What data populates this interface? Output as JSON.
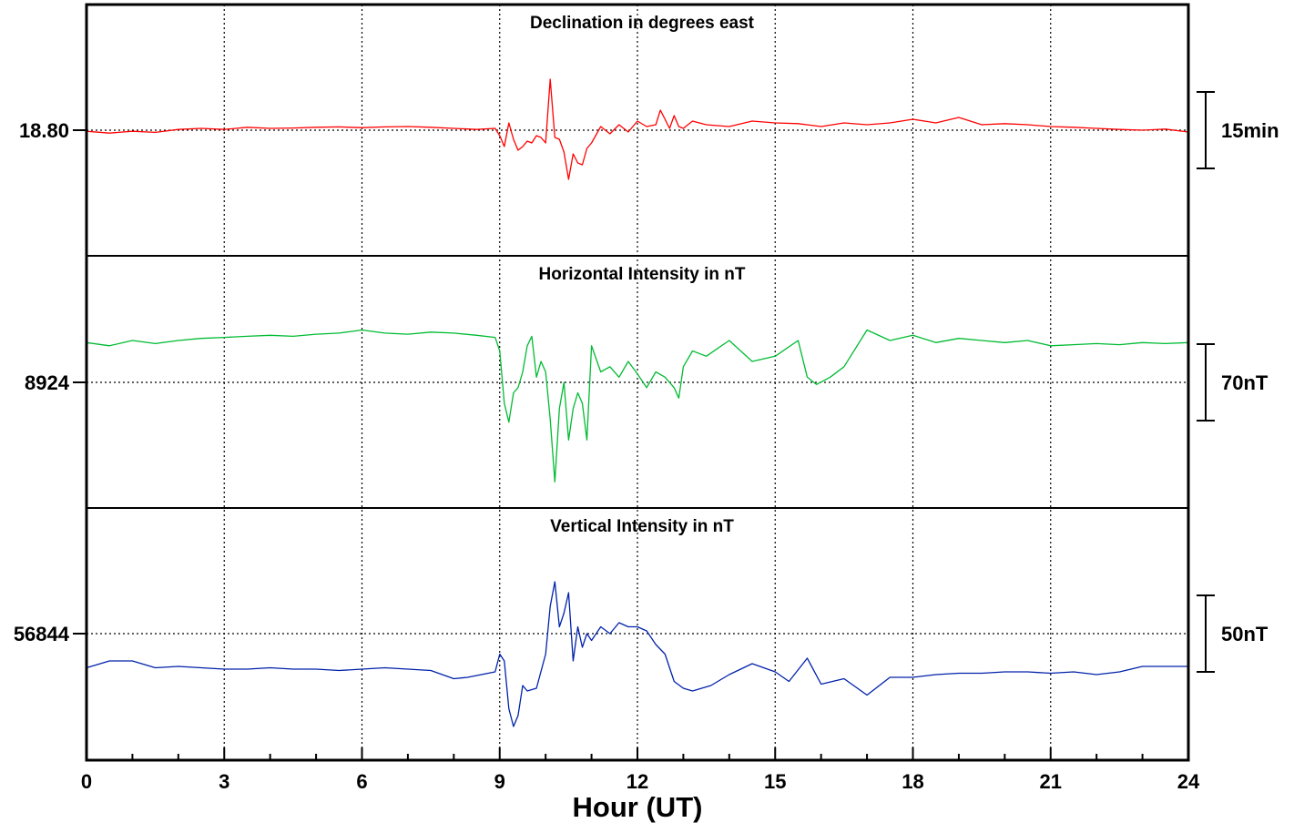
{
  "chart_data": {
    "type": "line",
    "xlabel": "Hour (UT)",
    "xlim": [
      0,
      24
    ],
    "xticks": [
      "0",
      "3",
      "6",
      "9",
      "12",
      "15",
      "18",
      "21",
      "24"
    ],
    "grid": true,
    "panels": [
      {
        "id": "declination",
        "title": "Declination in degrees east",
        "reference_label": "18.80",
        "scale_label": "15min",
        "color": "#ff0000",
        "series": [
          {
            "x": [
              0,
              0.5,
              1,
              1.5,
              2,
              2.5,
              3,
              3.5,
              4,
              4.5,
              5,
              5.5,
              6,
              6.5,
              7,
              7.5,
              8,
              8.5,
              8.9,
              9.0,
              9.1,
              9.2,
              9.3,
              9.4,
              9.5,
              9.6,
              9.7,
              9.8,
              9.9,
              10.0,
              10.1,
              10.2,
              10.3,
              10.4,
              10.5,
              10.6,
              10.7,
              10.8,
              10.9,
              11.0,
              11.2,
              11.4,
              11.6,
              11.8,
              12.0,
              12.2,
              12.4,
              12.5,
              12.6,
              12.7,
              12.8,
              12.9,
              13.0,
              13.2,
              13.5,
              14,
              14.5,
              15,
              15.5,
              16,
              16.5,
              17,
              17.5,
              18,
              18.5,
              19,
              19.5,
              20,
              20.5,
              21,
              21.5,
              22,
              22.5,
              23,
              23.5,
              24
            ],
            "y": [
              -0.3,
              -0.8,
              -0.3,
              -0.6,
              0.2,
              0.5,
              0.2,
              0.8,
              0.5,
              0.6,
              0.8,
              0.9,
              0.7,
              0.9,
              1.0,
              0.8,
              0.5,
              0.2,
              0.5,
              -1.5,
              -4.5,
              2.0,
              -2.5,
              -5.5,
              -4.5,
              -3.0,
              -3.5,
              -1.5,
              -2.0,
              -3.5,
              14.0,
              -2.0,
              -2.5,
              -6.0,
              -13.5,
              -6.5,
              -9.0,
              -9.5,
              -5.0,
              -3.5,
              1.0,
              -1.0,
              1.5,
              -0.5,
              2.5,
              1.0,
              1.5,
              5.5,
              3.0,
              0.5,
              4.0,
              1.0,
              0.5,
              2.5,
              1.5,
              1.0,
              2.5,
              2.0,
              1.8,
              1.0,
              2.0,
              1.5,
              2.0,
              3.0,
              2.0,
              3.5,
              1.5,
              1.8,
              1.5,
              1.0,
              0.8,
              0.5,
              0.2,
              0.0,
              0.3,
              -0.5
            ]
          }
        ]
      },
      {
        "id": "horizontal",
        "title": "Horizontal Intensity in nT",
        "reference_label": "8924",
        "scale_label": "70nT",
        "color": "#00bb33",
        "series": [
          {
            "x": [
              0,
              0.5,
              1,
              1.5,
              2,
              2.5,
              3,
              3.5,
              4,
              4.5,
              5,
              5.5,
              6,
              6.5,
              7,
              7.5,
              8,
              8.5,
              8.9,
              9.0,
              9.1,
              9.2,
              9.3,
              9.4,
              9.5,
              9.6,
              9.7,
              9.8,
              9.9,
              10.0,
              10.1,
              10.2,
              10.3,
              10.4,
              10.5,
              10.6,
              10.7,
              10.8,
              10.9,
              11.0,
              11.2,
              11.4,
              11.6,
              11.8,
              12.0,
              12.2,
              12.4,
              12.6,
              12.8,
              12.9,
              13.0,
              13.2,
              13.5,
              14,
              14.5,
              15,
              15.5,
              15.7,
              15.9,
              16.2,
              16.5,
              17,
              17.5,
              18,
              18.5,
              19,
              19.5,
              20,
              20.5,
              21,
              21.5,
              22,
              22.5,
              23,
              23.5,
              24
            ],
            "y": [
              38,
              35,
              40,
              37,
              40,
              42,
              43,
              44,
              45,
              44,
              46,
              47,
              50,
              47,
              46,
              48,
              47,
              45,
              43,
              30,
              -20,
              -38,
              -10,
              -5,
              10,
              35,
              44,
              5,
              20,
              10,
              -35,
              -95,
              -25,
              0,
              -55,
              -25,
              -10,
              -20,
              -55,
              35,
              10,
              15,
              5,
              20,
              8,
              -5,
              10,
              5,
              -5,
              -15,
              15,
              30,
              25,
              40,
              20,
              25,
              40,
              5,
              -2,
              5,
              15,
              50,
              40,
              45,
              38,
              42,
              40,
              38,
              40,
              35,
              36,
              37,
              36,
              38,
              37,
              38
            ]
          }
        ]
      },
      {
        "id": "vertical",
        "title": "Vertical Intensity in nT",
        "reference_label": "56844",
        "scale_label": "50nT",
        "color": "#0022aa",
        "series": [
          {
            "x": [
              0,
              0.5,
              1,
              1.5,
              2,
              2.5,
              3,
              3.5,
              4,
              4.5,
              5,
              5.5,
              6,
              6.5,
              7,
              7.5,
              8,
              8.3,
              8.6,
              8.9,
              9.0,
              9.1,
              9.2,
              9.3,
              9.4,
              9.5,
              9.6,
              9.8,
              10.0,
              10.1,
              10.2,
              10.3,
              10.4,
              10.5,
              10.6,
              10.7,
              10.8,
              10.9,
              11.0,
              11.2,
              11.4,
              11.6,
              11.8,
              12.0,
              12.2,
              12.4,
              12.6,
              12.8,
              13.0,
              13.2,
              13.4,
              13.6,
              14.0,
              14.5,
              15.0,
              15.3,
              15.7,
              16.0,
              16.5,
              17.0,
              17.5,
              18.0,
              18.5,
              19.0,
              19.5,
              20.0,
              20.5,
              21.0,
              21.5,
              22.0,
              22.5,
              23.0,
              23.5,
              24
            ],
            "y": [
              -25,
              -20,
              -20,
              -25,
              -24,
              -25,
              -26,
              -26,
              -25,
              -26,
              -26,
              -27,
              -26,
              -25,
              -26,
              -27,
              -33,
              -32,
              -30,
              -28,
              -15,
              -20,
              -55,
              -68,
              -60,
              -38,
              -42,
              -40,
              -15,
              20,
              38,
              5,
              15,
              30,
              -20,
              5,
              -10,
              0,
              -5,
              5,
              0,
              8,
              5,
              5,
              2,
              -8,
              -15,
              -35,
              -40,
              -42,
              -40,
              -38,
              -30,
              -22,
              -28,
              -35,
              -18,
              -37,
              -33,
              -45,
              -32,
              -32,
              -30,
              -29,
              -29,
              -28,
              -28,
              -29,
              -28,
              -30,
              -28,
              -24,
              -24,
              -24
            ]
          }
        ]
      }
    ]
  }
}
